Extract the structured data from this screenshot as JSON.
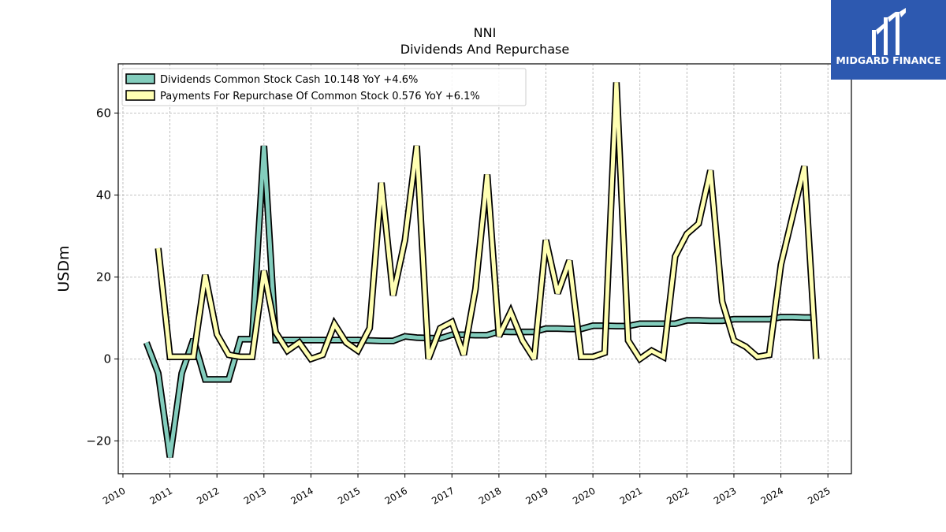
{
  "chart_data": {
    "type": "line",
    "title": "NNI",
    "subtitle": "Dividends And Repurchase",
    "ylabel": "USDm",
    "xlim": [
      2009.9,
      2025.5
    ],
    "ylim": [
      -28,
      72
    ],
    "y_ticks": [
      -20,
      0,
      20,
      40,
      60
    ],
    "y_tick_labels": [
      "−20",
      "0",
      "20",
      "40",
      "60"
    ],
    "x_ticks": [
      2010,
      2011,
      2012,
      2013,
      2014,
      2015,
      2016,
      2017,
      2018,
      2019,
      2020,
      2021,
      2022,
      2023,
      2024,
      2025
    ],
    "x_tick_labels": [
      "2010",
      "2011",
      "2012",
      "2013",
      "2014",
      "2015",
      "2016",
      "2017",
      "2018",
      "2019",
      "2020",
      "2021",
      "2022",
      "2023",
      "2024",
      "2025"
    ],
    "grid": true,
    "legend_position": "top-left",
    "series": [
      {
        "name": "Dividends Common Stock Cash  10.148 YoY +4.6%",
        "color": "#83cdbd",
        "x": [
          2010.5,
          2010.75,
          2011.0,
          2011.25,
          2011.5,
          2011.75,
          2012.0,
          2012.25,
          2012.5,
          2012.75,
          2013.0,
          2013.25,
          2013.5,
          2013.75,
          2014.0,
          2014.25,
          2014.5,
          2014.75,
          2015.0,
          2015.25,
          2015.5,
          2015.75,
          2016.0,
          2016.25,
          2016.5,
          2016.75,
          2017.0,
          2017.25,
          2017.5,
          2017.75,
          2018.0,
          2018.25,
          2018.5,
          2018.75,
          2019.0,
          2019.25,
          2019.5,
          2019.75,
          2020.0,
          2020.25,
          2020.5,
          2020.75,
          2021.0,
          2021.25,
          2021.5,
          2021.75,
          2022.0,
          2022.25,
          2022.5,
          2022.75,
          2023.0,
          2023.25,
          2023.5,
          2023.75,
          2024.0,
          2024.25,
          2024.5,
          2024.75
        ],
        "y": [
          4.0,
          -3.5,
          -24.0,
          -3.5,
          4.8,
          -5.0,
          -5.0,
          -5.0,
          4.8,
          4.8,
          52.0,
          4.6,
          4.6,
          4.6,
          4.6,
          4.6,
          4.6,
          4.6,
          4.6,
          4.5,
          4.4,
          4.4,
          5.5,
          5.2,
          5.1,
          5.0,
          5.9,
          5.9,
          5.8,
          5.8,
          6.7,
          6.6,
          6.6,
          6.6,
          7.4,
          7.4,
          7.3,
          7.3,
          8.1,
          8.1,
          8.0,
          8.0,
          8.6,
          8.6,
          8.6,
          8.6,
          9.4,
          9.4,
          9.3,
          9.3,
          9.7,
          9.7,
          9.7,
          9.7,
          10.2,
          10.2,
          10.1,
          10.1
        ]
      },
      {
        "name": "Payments For Repurchase Of Common Stock  0.576 YoY +6.1%",
        "color": "#ffffb3",
        "x": [
          2010.75,
          2011.0,
          2011.25,
          2011.5,
          2011.75,
          2012.0,
          2012.25,
          2012.5,
          2012.75,
          2013.0,
          2013.25,
          2013.5,
          2013.75,
          2014.0,
          2014.25,
          2014.5,
          2014.75,
          2015.0,
          2015.25,
          2015.5,
          2015.75,
          2016.0,
          2016.25,
          2016.5,
          2016.75,
          2017.0,
          2017.25,
          2017.5,
          2017.75,
          2018.0,
          2018.25,
          2018.5,
          2018.75,
          2019.0,
          2019.25,
          2019.5,
          2019.75,
          2020.0,
          2020.25,
          2020.5,
          2020.75,
          2021.0,
          2021.25,
          2021.5,
          2021.75,
          2022.0,
          2022.25,
          2022.5,
          2022.75,
          2023.0,
          2023.25,
          2023.5,
          2023.75,
          2024.0,
          2024.25,
          2024.5,
          2024.75
        ],
        "y": [
          27.0,
          0.5,
          0.5,
          0.5,
          20.5,
          6.0,
          1.0,
          0.5,
          0.5,
          21.5,
          6.5,
          2.0,
          4.0,
          0.0,
          1.0,
          8.5,
          4.0,
          2.0,
          7.5,
          43.0,
          15.5,
          29.0,
          52.0,
          0.0,
          7.5,
          9.0,
          1.0,
          17.0,
          45.0,
          5.5,
          11.5,
          4.5,
          0.0,
          29.0,
          16.0,
          24.0,
          0.5,
          0.5,
          1.5,
          67.5,
          4.5,
          0.0,
          2.0,
          0.5,
          25.0,
          30.5,
          33.0,
          46.0,
          14.0,
          4.5,
          3.0,
          0.5,
          1.0,
          23.0,
          35.0,
          47.0,
          0.0
        ]
      }
    ]
  },
  "logo": {
    "text": "MIDGARD FINANCE",
    "background": "#2d59b0"
  }
}
